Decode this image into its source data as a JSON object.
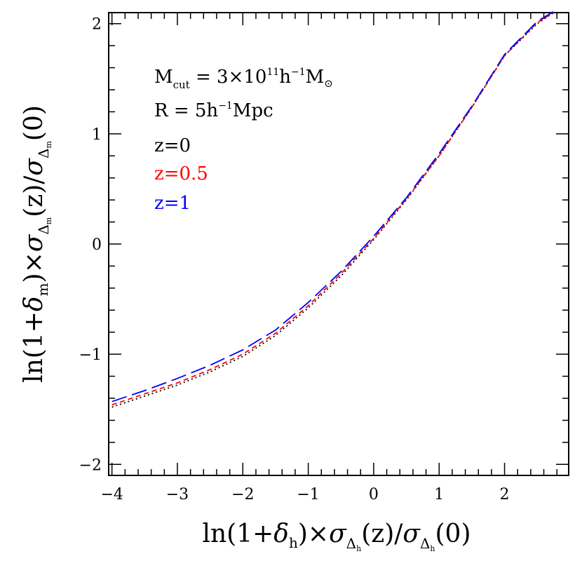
{
  "chart_data": {
    "type": "line",
    "xlabel": "ln(1+δh)×σΔh(z)/σΔh(0)",
    "ylabel": "ln(1+δm)×σΔm(z)/σΔm(0)",
    "xlim": [
      -4.05,
      2.98
    ],
    "ylim": [
      -2.1,
      2.1
    ],
    "xticks": [
      -4,
      -3,
      -2,
      -1,
      0,
      1,
      2
    ],
    "yticks": [
      -2,
      -1,
      0,
      1,
      2
    ],
    "xtick_labels": [
      "−4",
      "−3",
      "−2",
      "−1",
      "0",
      "1",
      "2"
    ],
    "ytick_labels": [
      "−2",
      "−1",
      "0",
      "1",
      "2"
    ],
    "grid": false,
    "annotations": {
      "mcut": {
        "prefix": "M",
        "sub": "cut",
        "mid": " = 3×10",
        "sup1": "11",
        "mid2": "h",
        "sup2": "−1",
        "suffix": "M",
        "suffix_sub": "⊙"
      },
      "radius": {
        "prefix": "R = 5h",
        "sup": "−1",
        "suffix": "Mpc"
      }
    },
    "series": [
      {
        "name": "z=0",
        "color": "#000000",
        "dash": "dotted",
        "x": [
          -4.0,
          -3.5,
          -3.0,
          -2.5,
          -2.0,
          -1.5,
          -1.0,
          -0.5,
          0.0,
          0.5,
          1.0,
          1.5,
          2.0,
          2.5,
          2.75
        ],
        "y": [
          -1.48,
          -1.38,
          -1.28,
          -1.16,
          -1.02,
          -0.83,
          -0.58,
          -0.29,
          0.04,
          0.4,
          0.8,
          1.24,
          1.71,
          2.0,
          2.1
        ]
      },
      {
        "name": "z=0.5",
        "color": "#ff0000",
        "dash": "short-dash",
        "x": [
          -4.0,
          -3.5,
          -3.0,
          -2.5,
          -2.0,
          -1.5,
          -1.0,
          -0.5,
          0.0,
          0.5,
          1.0,
          1.5,
          2.0,
          2.5,
          2.75
        ],
        "y": [
          -1.46,
          -1.36,
          -1.26,
          -1.14,
          -1.0,
          -0.81,
          -0.56,
          -0.27,
          0.05,
          0.41,
          0.8,
          1.24,
          1.71,
          2.01,
          2.1
        ]
      },
      {
        "name": "z=1",
        "color": "#0000ff",
        "dash": "long-dash",
        "x": [
          -4.0,
          -3.5,
          -3.0,
          -2.5,
          -2.0,
          -1.5,
          -1.0,
          -0.5,
          0.0,
          0.5,
          1.0,
          1.5,
          2.0,
          2.5,
          2.75
        ],
        "y": [
          -1.43,
          -1.33,
          -1.22,
          -1.1,
          -0.96,
          -0.78,
          -0.53,
          -0.25,
          0.07,
          0.42,
          0.82,
          1.25,
          1.72,
          2.02,
          2.11
        ]
      }
    ]
  }
}
